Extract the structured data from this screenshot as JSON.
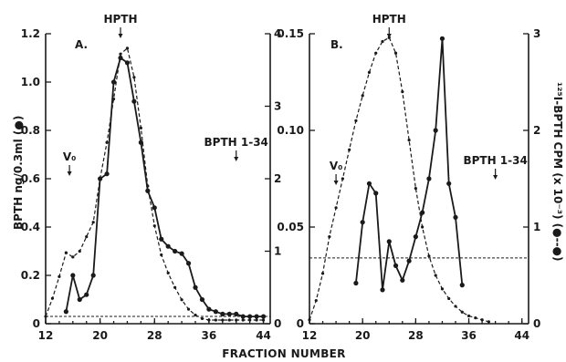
{
  "chart_data": [
    {
      "type": "line",
      "panel_label": "A.",
      "xlabel": "FRACTION NUMBER",
      "x_ticks": [
        "12",
        "20",
        "28",
        "36",
        "44"
      ],
      "xlim": [
        12,
        45
      ],
      "y_left_label": "BPTH ng/0.3ml (●)",
      "y_left_ticks": [
        "0",
        "0.2",
        "0.4",
        "0.6",
        "0.8",
        "1.0",
        "1.2"
      ],
      "y_left_lim": [
        0,
        1.2
      ],
      "y_right_ticks": [
        "0",
        "1",
        "2",
        "3",
        "4"
      ],
      "y_right_lim": [
        0,
        4
      ],
      "annotations": [
        {
          "text": "HPTH",
          "x": 23
        },
        {
          "text": "V₀",
          "x": 15.5
        },
        {
          "text": "BPTH 1-34",
          "x": 40
        }
      ],
      "baseline_right": 0.1,
      "series": [
        {
          "style": "solid-dots",
          "axis": "left",
          "x": [
            15,
            16,
            17,
            18,
            19,
            20,
            21,
            22,
            23,
            24,
            25,
            26,
            27,
            28,
            29,
            30,
            31,
            32,
            33,
            34,
            35,
            36,
            37,
            38,
            39,
            40,
            41,
            42,
            43,
            44
          ],
          "y": [
            0.05,
            0.2,
            0.1,
            0.12,
            0.2,
            0.6,
            0.62,
            1.0,
            1.1,
            1.08,
            0.92,
            0.75,
            0.55,
            0.48,
            0.35,
            0.32,
            0.3,
            0.29,
            0.25,
            0.15,
            0.1,
            0.06,
            0.05,
            0.04,
            0.04,
            0.04,
            0.03,
            0.03,
            0.03,
            0.03
          ]
        },
        {
          "style": "dashed-dots",
          "axis": "right",
          "x": [
            12,
            13,
            14,
            15,
            16,
            17,
            18,
            19,
            20,
            21,
            22,
            23,
            24,
            25,
            26,
            27,
            28,
            29,
            30,
            31,
            32,
            33,
            34,
            35,
            36,
            37,
            38,
            39,
            40,
            41,
            42,
            43,
            44
          ],
          "y": [
            0.1,
            0.35,
            0.65,
            0.98,
            0.92,
            1.0,
            1.2,
            1.4,
            2.0,
            2.5,
            3.1,
            3.72,
            3.8,
            3.4,
            2.7,
            1.9,
            1.35,
            0.95,
            0.7,
            0.5,
            0.33,
            0.2,
            0.12,
            0.07,
            0.05,
            0.05,
            0.05,
            0.05,
            0.05,
            0.05,
            0.05,
            0.05,
            0.05
          ]
        }
      ]
    },
    {
      "type": "line",
      "panel_label": "B.",
      "xlabel": "FRACTION NUMBER",
      "x_ticks": [
        "12",
        "20",
        "28",
        "36",
        "44"
      ],
      "xlim": [
        12,
        45
      ],
      "y_left_ticks": [
        "0",
        "0.05",
        "0.10",
        "0.15"
      ],
      "y_left_lim": [
        0,
        0.15
      ],
      "y_right_label": "¹²⁵I-BPTH CPM (x 10⁻³) (●--●)",
      "y_right_ticks": [
        "0",
        "1",
        "2",
        "3"
      ],
      "y_right_lim": [
        0,
        3
      ],
      "annotations": [
        {
          "text": "HPTH",
          "x": 24
        },
        {
          "text": "V₀",
          "x": 16
        },
        {
          "text": "BPTH 1-34",
          "x": 40
        }
      ],
      "baseline_right": 0.68,
      "series": [
        {
          "style": "solid-dots",
          "axis": "right",
          "x": [
            19,
            20,
            21,
            22,
            23,
            24,
            25,
            26,
            27,
            28,
            29,
            30,
            31,
            32,
            33,
            34,
            35
          ],
          "y": [
            0.42,
            1.05,
            1.45,
            1.35,
            0.35,
            0.85,
            0.6,
            0.45,
            0.65,
            0.9,
            1.15,
            1.5,
            2.0,
            2.95,
            1.45,
            1.1,
            0.4
          ]
        },
        {
          "style": "dashed-dots",
          "axis": "left",
          "x": [
            12,
            13,
            14,
            15,
            16,
            17,
            18,
            19,
            20,
            21,
            22,
            23,
            24,
            25,
            26,
            27,
            28,
            29,
            30,
            31,
            32,
            33,
            34,
            35,
            36,
            37,
            38,
            39
          ],
          "y": [
            0.002,
            0.012,
            0.026,
            0.045,
            0.06,
            0.075,
            0.09,
            0.105,
            0.118,
            0.13,
            0.14,
            0.146,
            0.148,
            0.14,
            0.12,
            0.095,
            0.07,
            0.05,
            0.035,
            0.025,
            0.018,
            0.013,
            0.009,
            0.006,
            0.004,
            0.003,
            0.002,
            0.001
          ]
        }
      ]
    }
  ]
}
